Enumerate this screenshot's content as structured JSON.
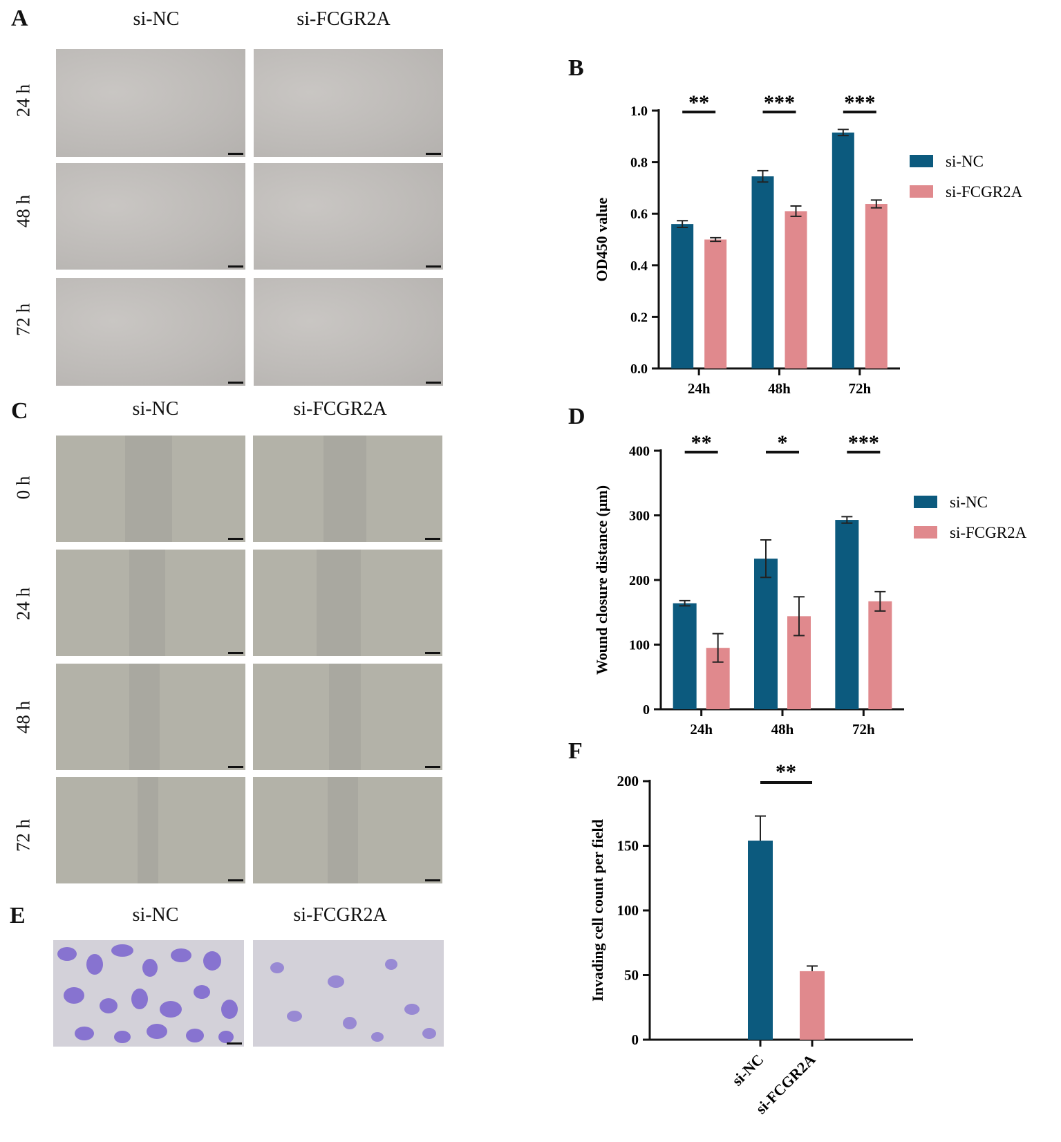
{
  "panels": {
    "A": {
      "letter": "A",
      "columns": [
        "si-NC",
        "si-FCGR2A"
      ],
      "rows": [
        "24 h",
        "48 h",
        "72 h"
      ]
    },
    "C": {
      "letter": "C",
      "columns": [
        "si-NC",
        "si-FCGR2A"
      ],
      "rows": [
        "0 h",
        "24 h",
        "48 h",
        "72 h"
      ]
    },
    "E": {
      "letter": "E",
      "columns": [
        "si-NC",
        "si-FCGR2A"
      ]
    },
    "B": {
      "letter": "B"
    },
    "D": {
      "letter": "D"
    },
    "F": {
      "letter": "F"
    }
  },
  "colors": {
    "si_NC": "#0c5a7e",
    "si_FCGR2A": "#e0898d"
  },
  "chart_data": [
    {
      "id": "B",
      "type": "bar",
      "categories": [
        "24h",
        "48h",
        "72h"
      ],
      "series": [
        {
          "name": "si-NC",
          "values": [
            0.56,
            0.745,
            0.915
          ],
          "errors": [
            0.013,
            0.022,
            0.012
          ]
        },
        {
          "name": "si-FCGR2A",
          "values": [
            0.5,
            0.61,
            0.638
          ],
          "errors": [
            0.007,
            0.02,
            0.015
          ]
        }
      ],
      "significance": [
        "**",
        "***",
        "***"
      ],
      "ylabel": "OD450 value",
      "ylim": [
        0,
        1.0
      ],
      "yticks": [
        "0.0",
        "0.2",
        "0.4",
        "0.6",
        "0.8",
        "1.0"
      ],
      "legend": "right"
    },
    {
      "id": "D",
      "type": "bar",
      "categories": [
        "24h",
        "48h",
        "72h"
      ],
      "series": [
        {
          "name": "si-NC",
          "values": [
            164,
            233,
            293
          ],
          "errors": [
            4,
            29,
            5
          ]
        },
        {
          "name": "si-FCGR2A",
          "values": [
            95,
            144,
            167
          ],
          "errors": [
            22,
            30,
            15
          ]
        }
      ],
      "significance": [
        "**",
        "*",
        "***"
      ],
      "ylabel": "Wound closure distance (μm)",
      "ylim": [
        0,
        400
      ],
      "yticks": [
        "0",
        "100",
        "200",
        "300",
        "400"
      ],
      "legend": "right"
    },
    {
      "id": "F",
      "type": "bar",
      "categories": [
        "si-NC",
        "si-FCGR2A"
      ],
      "values": [
        154,
        53
      ],
      "errors": [
        19,
        4
      ],
      "significance": "**",
      "ylabel": "Invading cell count per field",
      "ylim": [
        0,
        200
      ],
      "yticks": [
        "0",
        "50",
        "100",
        "150",
        "200"
      ]
    }
  ]
}
